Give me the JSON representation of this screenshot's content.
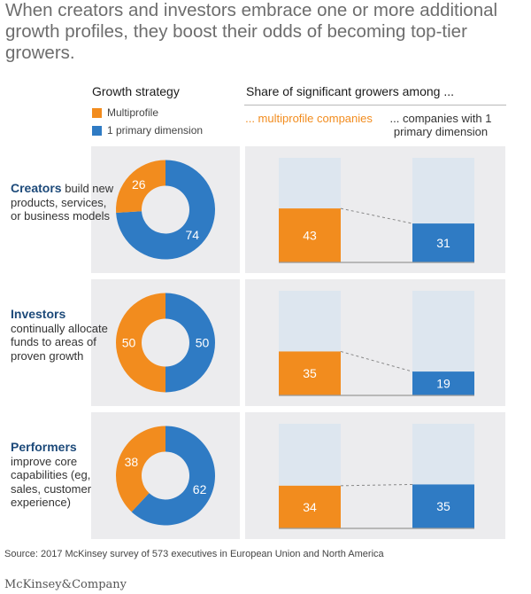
{
  "title": "When creators and investors embrace one or more additional growth profiles, they boost their odds of becoming top-tier growers.",
  "left_header": "Growth strategy",
  "right_header": "Share of significant growers among ...",
  "legend": [
    {
      "label": "Multiprofile",
      "color": "#f28c1e"
    },
    {
      "label": "1 primary dimension",
      "color": "#2f7bc4"
    }
  ],
  "column_labels": {
    "multiprofile": "... multiprofile companies",
    "primary": "... companies with 1 primary dimension"
  },
  "rows": [
    {
      "name": "Creators",
      "description": "build new products, services, or business models"
    },
    {
      "name": "Investors",
      "description": "continually allocate funds to areas of proven growth"
    },
    {
      "name": "Performers",
      "description": "improve core capabilities (eg, sales, customer experience)"
    }
  ],
  "chart_data": [
    {
      "type": "pie",
      "title": "Growth strategy",
      "series": [
        {
          "name": "Creators",
          "values": [
            26,
            74
          ]
        },
        {
          "name": "Investors",
          "values": [
            50,
            50
          ]
        },
        {
          "name": "Performers",
          "values": [
            38,
            62
          ]
        }
      ],
      "categories": [
        "Multiprofile",
        "1 primary dimension"
      ]
    },
    {
      "type": "bar",
      "title": "Share of significant growers among ...",
      "categories": [
        "... multiprofile companies",
        "... companies with 1 primary dimension"
      ],
      "series": [
        {
          "name": "Creators",
          "values": [
            43,
            31
          ]
        },
        {
          "name": "Investors",
          "values": [
            35,
            19
          ]
        },
        {
          "name": "Performers",
          "values": [
            34,
            35
          ]
        }
      ],
      "ylim": [
        0,
        100
      ]
    }
  ],
  "colors": {
    "multiprofile": "#f28c1e",
    "primary": "#2f7bc4",
    "bar_bg": "#dde6ef",
    "panel": "#ececee"
  },
  "source": "Source: 2017 McKinsey survey of 573 executives in European Union and North America",
  "brand": "McKinsey&Company"
}
